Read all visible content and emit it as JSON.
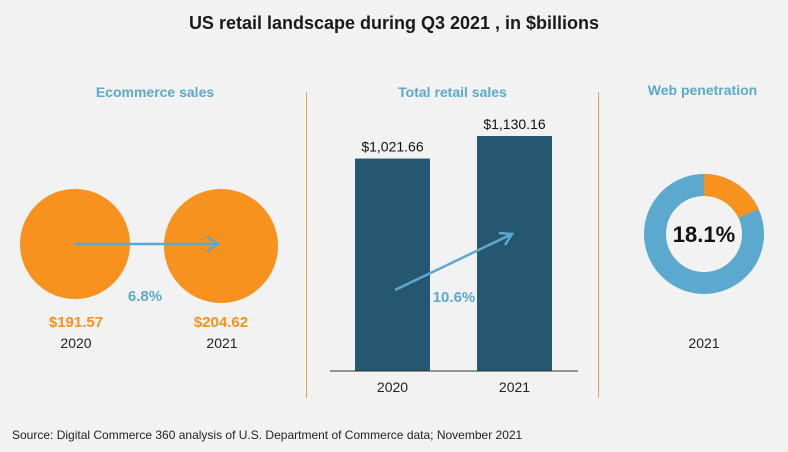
{
  "title": "US retail landscape during Q3 2021 , in $billions",
  "source": "Source: Digital Commerce 360 analysis of U.S. Department of Commerce data; November 2021",
  "colors": {
    "orange": "#f7921e",
    "navy": "#255770",
    "blue": "#5ba9cf",
    "divider": "#f5a04a",
    "background": "#f2f2f2"
  },
  "chart_data": [
    {
      "type": "bubble",
      "title": "Ecommerce sales",
      "categories": [
        "2020",
        "2021"
      ],
      "values": [
        191.57,
        204.62
      ],
      "value_labels": [
        "$191.57",
        "$204.62"
      ],
      "growth_label": "6.8%"
    },
    {
      "type": "bar",
      "title": "Total retail sales",
      "categories": [
        "2020",
        "2021"
      ],
      "values": [
        1021.66,
        1130.16
      ],
      "value_labels": [
        "$1,021.66",
        "$1,130.16"
      ],
      "growth_label": "10.6%",
      "ylim": [
        0,
        1130.16
      ]
    },
    {
      "type": "pie",
      "title": "Web penetration",
      "categories": [
        "2021"
      ],
      "values": [
        18.1
      ],
      "center_label": "18.1%"
    }
  ]
}
